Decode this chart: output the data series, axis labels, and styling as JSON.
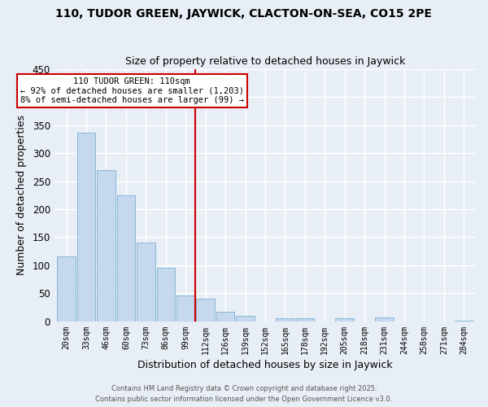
{
  "title": "110, TUDOR GREEN, JAYWICK, CLACTON-ON-SEA, CO15 2PE",
  "subtitle": "Size of property relative to detached houses in Jaywick",
  "xlabel": "Distribution of detached houses by size in Jaywick",
  "ylabel": "Number of detached properties",
  "bin_labels": [
    "20sqm",
    "33sqm",
    "46sqm",
    "60sqm",
    "73sqm",
    "86sqm",
    "99sqm",
    "112sqm",
    "126sqm",
    "139sqm",
    "152sqm",
    "165sqm",
    "178sqm",
    "192sqm",
    "205sqm",
    "218sqm",
    "231sqm",
    "244sqm",
    "258sqm",
    "271sqm",
    "284sqm"
  ],
  "bar_values": [
    116,
    336,
    270,
    224,
    140,
    95,
    46,
    40,
    17,
    10,
    0,
    6,
    5,
    0,
    5,
    0,
    7,
    0,
    0,
    0,
    2
  ],
  "bar_color": "#c5d8ed",
  "bar_edgecolor": "#7aafd4",
  "bg_color": "#e8eef5",
  "grid_color": "#ffffff",
  "vline_x_index": 7,
  "annotation_line1": "110 TUDOR GREEN: 110sqm",
  "annotation_line2": "← 92% of detached houses are smaller (1,203)",
  "annotation_line3": "8% of semi-detached houses are larger (99) →",
  "annotation_box_facecolor": "#ffffff",
  "annotation_box_edgecolor": "#cc0000",
  "vline_color": "#cc0000",
  "ylim": [
    0,
    450
  ],
  "yticks": [
    0,
    50,
    100,
    150,
    200,
    250,
    300,
    350,
    400,
    450
  ],
  "footer1": "Contains HM Land Registry data © Crown copyright and database right 2025.",
  "footer2": "Contains public sector information licensed under the Open Government Licence v3.0."
}
